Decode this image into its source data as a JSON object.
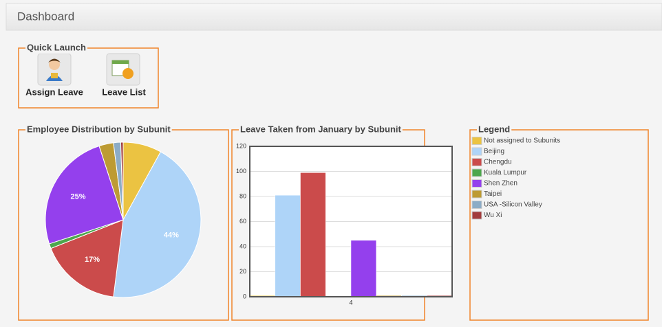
{
  "header": {
    "title": "Dashboard"
  },
  "quick_launch": {
    "title": "Quick Launch",
    "items": [
      "Assign Leave",
      "Leave List"
    ]
  },
  "legend": {
    "title": "Legend"
  },
  "chart_data": [
    {
      "type": "pie",
      "title": "Employee Distribution by Subunit",
      "values": [
        8,
        44,
        17,
        1,
        25,
        3,
        1.5,
        0.5
      ],
      "value_labels": [
        null,
        "44%",
        "17%",
        null,
        "25%",
        null,
        null,
        null
      ],
      "colors": [
        "#ebc342",
        "#aed4f8",
        "#cb4b4b",
        "#4da74d",
        "#9440ed",
        "#bd9b33",
        "#8cacc6",
        "#a23c3c"
      ]
    },
    {
      "type": "bar",
      "title": "Leave Taken from January by Subunit",
      "categories": [
        "4"
      ],
      "series": [
        {
          "name": "Not assigned to Subunits",
          "color": "#ebc342",
          "values": [
            1
          ]
        },
        {
          "name": "Beijing",
          "color": "#aed4f8",
          "values": [
            81
          ]
        },
        {
          "name": "Chengdu",
          "color": "#cb4b4b",
          "values": [
            99
          ]
        },
        {
          "name": "Kuala Lumpur",
          "color": "#4da74d",
          "values": [
            0.5
          ]
        },
        {
          "name": "Shen Zhen",
          "color": "#9440ed",
          "values": [
            45
          ]
        },
        {
          "name": "Taipei",
          "color": "#bd9b33",
          "values": [
            1
          ]
        },
        {
          "name": "USA -Silicon Valley",
          "color": "#8cacc6",
          "values": [
            1
          ]
        },
        {
          "name": "Wu Xi",
          "color": "#a23c3c",
          "values": [
            1
          ]
        }
      ],
      "ylim": [
        0,
        120
      ],
      "yticks": [
        0,
        20,
        40,
        60,
        80,
        100,
        120
      ],
      "grid": true
    }
  ]
}
